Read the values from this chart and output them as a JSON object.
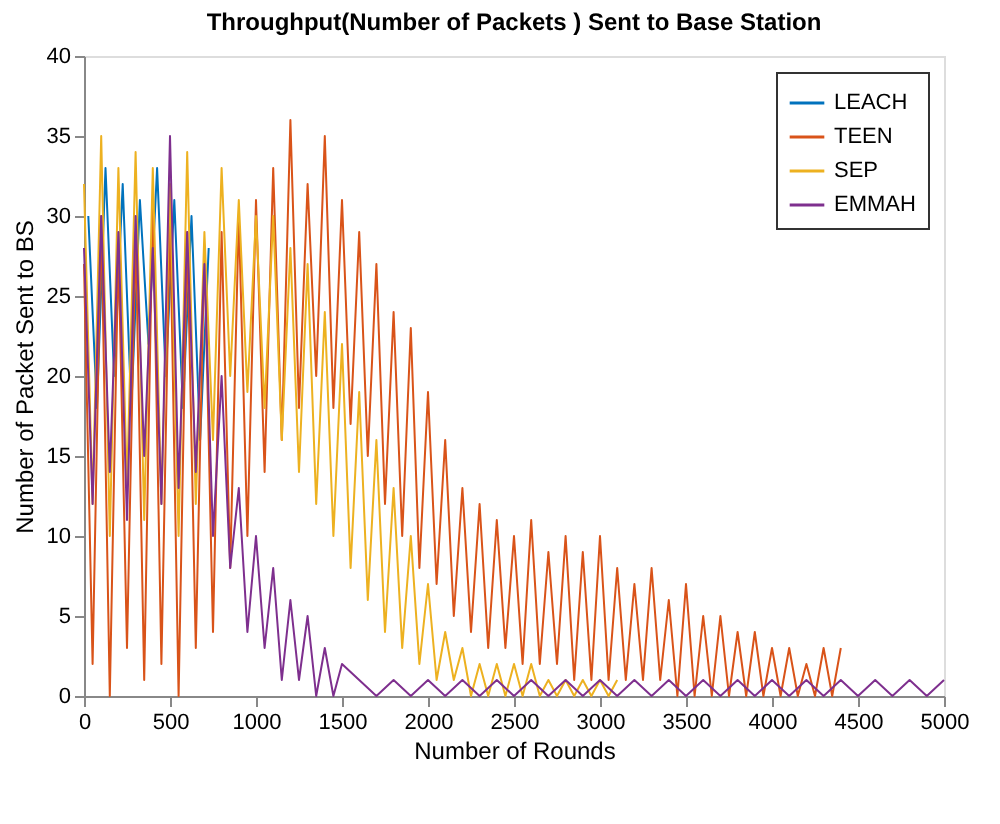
{
  "chart_data": {
    "type": "line",
    "title": "Throughput(Number of Packets ) Sent to Base Station",
    "xlabel": "Number of Rounds",
    "ylabel": "Number of Packet Sent to BS",
    "xlim": [
      0,
      5000
    ],
    "xticks": [
      0,
      500,
      1000,
      1500,
      2000,
      2500,
      3000,
      3500,
      4000,
      4500,
      5000
    ],
    "ylim": [
      0,
      40
    ],
    "yticks": [
      0,
      5,
      10,
      15,
      20,
      25,
      30,
      35,
      40
    ],
    "grid": false,
    "legend": "top right",
    "marker": "none",
    "line_style": "solid",
    "series": [
      {
        "name": "LEACH",
        "color": "#0072bd",
        "x": [
          25,
          75,
          125,
          175,
          225,
          275,
          325,
          375,
          425,
          475,
          525,
          575,
          625,
          675,
          725
        ],
        "values": [
          30,
          18,
          33,
          20,
          32,
          18,
          31,
          22,
          33,
          20,
          31,
          18,
          30,
          16,
          28
        ]
      },
      {
        "name": "TEEN",
        "color": "#d95319",
        "x": [
          0,
          50,
          100,
          150,
          200,
          250,
          300,
          350,
          400,
          450,
          500,
          550,
          600,
          650,
          700,
          750,
          800,
          850,
          900,
          950,
          1000,
          1050,
          1100,
          1150,
          1200,
          1250,
          1300,
          1350,
          1400,
          1450,
          1500,
          1550,
          1600,
          1650,
          1700,
          1750,
          1800,
          1850,
          1900,
          1950,
          2000,
          2050,
          2100,
          2150,
          2200,
          2250,
          2300,
          2350,
          2400,
          2450,
          2500,
          2550,
          2600,
          2650,
          2700,
          2750,
          2800,
          2850,
          2900,
          2950,
          3000,
          3050,
          3100,
          3150,
          3200,
          3250,
          3300,
          3350,
          3400,
          3450,
          3500,
          3550,
          3600,
          3650,
          3700,
          3750,
          3800,
          3850,
          3900,
          3950,
          4000,
          4050,
          4100,
          4150,
          4200,
          4250,
          4300,
          4350,
          4400
        ],
        "values": [
          27,
          2,
          30,
          0,
          28,
          3,
          29,
          1,
          31,
          2,
          30,
          0,
          29,
          3,
          28,
          4,
          29,
          8,
          30,
          10,
          31,
          14,
          33,
          16,
          36,
          18,
          32,
          20,
          35,
          18,
          31,
          17,
          29,
          15,
          27,
          12,
          24,
          10,
          23,
          8,
          19,
          7,
          16,
          5,
          13,
          4,
          12,
          3,
          11,
          3,
          10,
          2,
          11,
          2,
          9,
          2,
          10,
          1,
          9,
          1,
          10,
          1,
          8,
          1,
          7,
          1,
          8,
          1,
          6,
          0,
          7,
          0,
          5,
          0,
          5,
          0,
          4,
          0,
          4,
          0,
          3,
          0,
          3,
          0,
          2,
          0,
          3,
          0,
          3
        ]
      },
      {
        "name": "SEP",
        "color": "#edb120",
        "x": [
          0,
          50,
          100,
          150,
          200,
          250,
          300,
          350,
          400,
          450,
          500,
          550,
          600,
          650,
          700,
          750,
          800,
          850,
          900,
          950,
          1000,
          1050,
          1100,
          1150,
          1200,
          1250,
          1300,
          1350,
          1400,
          1450,
          1500,
          1550,
          1600,
          1650,
          1700,
          1750,
          1800,
          1850,
          1900,
          1950,
          2000,
          2050,
          2100,
          2150,
          2200,
          2250,
          2300,
          2350,
          2400,
          2450,
          2500,
          2550,
          2600,
          2650,
          2700,
          2750,
          2800,
          2850,
          2900,
          2950,
          3000,
          3050,
          3100
        ],
        "values": [
          32,
          12,
          35,
          10,
          33,
          13,
          34,
          11,
          33,
          12,
          32,
          10,
          34,
          12,
          29,
          16,
          33,
          20,
          31,
          19,
          30,
          18,
          30,
          16,
          28,
          14,
          27,
          12,
          24,
          10,
          22,
          8,
          19,
          6,
          16,
          4,
          13,
          3,
          10,
          2,
          7,
          1,
          4,
          1,
          3,
          0,
          2,
          0,
          2,
          0,
          2,
          0,
          2,
          0,
          1,
          0,
          1,
          0,
          1,
          0,
          1,
          0,
          1
        ]
      },
      {
        "name": "EMMAH",
        "color": "#7e2f8e",
        "x": [
          0,
          50,
          100,
          150,
          200,
          250,
          300,
          350,
          400,
          450,
          500,
          550,
          600,
          650,
          700,
          750,
          800,
          850,
          900,
          950,
          1000,
          1050,
          1100,
          1150,
          1200,
          1250,
          1300,
          1350,
          1400,
          1450,
          1500,
          1600,
          1700,
          1800,
          1900,
          2000,
          2100,
          2200,
          2300,
          2400,
          2500,
          2600,
          2700,
          2800,
          2900,
          3000,
          3100,
          3200,
          3300,
          3400,
          3500,
          3600,
          3700,
          3800,
          3900,
          4000,
          4100,
          4200,
          4300,
          4400,
          4500,
          4600,
          4700,
          4800,
          4900,
          5000
        ],
        "values": [
          28,
          12,
          30,
          14,
          29,
          11,
          30,
          15,
          28,
          12,
          35,
          13,
          29,
          14,
          27,
          10,
          20,
          8,
          13,
          4,
          10,
          3,
          8,
          1,
          6,
          1,
          5,
          0,
          3,
          0,
          2,
          1,
          0,
          1,
          0,
          1,
          0,
          1,
          0,
          1,
          0,
          1,
          0,
          1,
          0,
          1,
          0,
          1,
          0,
          1,
          0,
          1,
          0,
          1,
          0,
          1,
          0,
          1,
          0,
          1,
          0,
          1,
          0,
          1,
          0,
          1
        ]
      }
    ]
  }
}
